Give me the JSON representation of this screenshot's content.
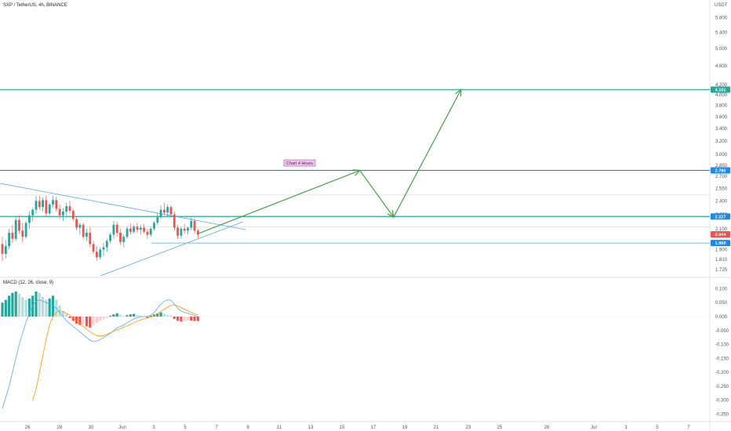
{
  "header": {
    "symbol_title": "SXP / TetherUS, 4h, BINANCE",
    "currency": "USDT"
  },
  "macd_label": "MACD (12, 26, close, 9)",
  "annotation": "Chart 4 Hours",
  "colors": {
    "up": "#26a69a",
    "down": "#ef5350",
    "horizontal_line": "#26a69a",
    "trend_line": "#5aa7e6",
    "arrow": "#43a047",
    "price_tag_current": "#ef5350",
    "price_tag_levels": "#1e88e5",
    "price_tag_target": "#26a69a",
    "macd_line": "#5aa7e6",
    "signal_line": "#ff9800"
  },
  "chart_data": [
    {
      "type": "candlestick",
      "price_axis": {
        "scale": "log",
        "ticks": [
          "5.800",
          "5.400",
          "5.000",
          "4.600",
          "4.200",
          "4.000",
          "3.800",
          "3.600",
          "3.400",
          "3.200",
          "3.000",
          "2.850",
          "2.700",
          "2.550",
          "2.400",
          "2.250",
          "2.100",
          "1.950",
          "1.900",
          "1.810",
          "1.725"
        ]
      },
      "time_axis": {
        "ticks": [
          "26",
          "28",
          "30",
          "Jun",
          "3",
          "5",
          "7",
          "9",
          "11",
          "13",
          "15",
          "17",
          "19",
          "21",
          "23",
          "25",
          "28",
          "Jul",
          "3",
          "5",
          "7"
        ]
      },
      "price_tags": [
        {
          "label": "4.101",
          "value": 4.101,
          "kind": "target"
        },
        {
          "label": "2.780",
          "value": 2.78,
          "kind": "level"
        },
        {
          "label": "2.227",
          "value": 2.227,
          "kind": "level"
        },
        {
          "label": "2.044",
          "value": 2.044,
          "kind": "current"
        },
        {
          "label": "1.960",
          "value": 1.96,
          "kind": "level"
        }
      ],
      "horizontal_levels": [
        4.101,
        2.78,
        2.227,
        1.96
      ],
      "thin_levels": [
        2.47,
        2.12
      ],
      "candles_ohlc": [
        [
          1.95,
          2.02,
          1.8,
          1.86
        ],
        [
          1.86,
          1.99,
          1.82,
          1.93
        ],
        [
          1.93,
          2.1,
          1.9,
          2.06
        ],
        [
          2.06,
          2.14,
          1.96,
          2.0
        ],
        [
          2.0,
          2.22,
          1.98,
          2.19
        ],
        [
          2.19,
          2.24,
          2.05,
          2.08
        ],
        [
          2.08,
          2.16,
          1.97,
          2.02
        ],
        [
          2.02,
          2.18,
          2.0,
          2.16
        ],
        [
          2.16,
          2.28,
          2.1,
          2.24
        ],
        [
          2.24,
          2.32,
          2.18,
          2.3
        ],
        [
          2.3,
          2.46,
          2.25,
          2.4
        ],
        [
          2.4,
          2.46,
          2.3,
          2.33
        ],
        [
          2.33,
          2.44,
          2.28,
          2.41
        ],
        [
          2.41,
          2.46,
          2.22,
          2.26
        ],
        [
          2.26,
          2.38,
          2.24,
          2.36
        ],
        [
          2.36,
          2.46,
          2.32,
          2.41
        ],
        [
          2.41,
          2.45,
          2.28,
          2.31
        ],
        [
          2.31,
          2.36,
          2.2,
          2.24
        ],
        [
          2.24,
          2.32,
          2.18,
          2.28
        ],
        [
          2.28,
          2.38,
          2.24,
          2.34
        ],
        [
          2.34,
          2.4,
          2.26,
          2.29
        ],
        [
          2.29,
          2.31,
          2.18,
          2.2
        ],
        [
          2.2,
          2.22,
          2.08,
          2.11
        ],
        [
          2.11,
          2.16,
          2.04,
          2.14
        ],
        [
          2.14,
          2.16,
          2.0,
          2.02
        ],
        [
          2.02,
          2.1,
          1.98,
          2.06
        ],
        [
          2.06,
          2.12,
          1.92,
          1.95
        ],
        [
          1.95,
          1.98,
          1.86,
          1.88
        ],
        [
          1.88,
          1.93,
          1.8,
          1.83
        ],
        [
          1.83,
          1.92,
          1.81,
          1.9
        ],
        [
          1.9,
          1.96,
          1.84,
          1.92
        ],
        [
          1.92,
          2.0,
          1.88,
          1.98
        ],
        [
          1.98,
          2.06,
          1.96,
          2.04
        ],
        [
          2.04,
          2.18,
          2.0,
          2.14
        ],
        [
          2.14,
          2.17,
          2.02,
          2.06
        ],
        [
          2.06,
          2.1,
          1.94,
          1.97
        ],
        [
          1.97,
          2.04,
          1.92,
          2.02
        ],
        [
          2.02,
          2.12,
          2.0,
          2.1
        ],
        [
          2.1,
          2.15,
          2.04,
          2.07
        ],
        [
          2.07,
          2.14,
          2.05,
          2.12
        ],
        [
          2.12,
          2.16,
          2.06,
          2.09
        ],
        [
          2.09,
          2.14,
          2.04,
          2.11
        ],
        [
          2.11,
          2.15,
          2.05,
          2.07
        ],
        [
          2.07,
          2.1,
          2.0,
          2.04
        ],
        [
          2.04,
          2.12,
          2.02,
          2.1
        ],
        [
          2.1,
          2.18,
          2.08,
          2.16
        ],
        [
          2.16,
          2.26,
          2.14,
          2.22
        ],
        [
          2.22,
          2.35,
          2.2,
          2.3
        ],
        [
          2.3,
          2.38,
          2.24,
          2.27
        ],
        [
          2.27,
          2.36,
          2.22,
          2.33
        ],
        [
          2.33,
          2.35,
          2.22,
          2.25
        ],
        [
          2.25,
          2.28,
          2.08,
          2.11
        ],
        [
          2.11,
          2.14,
          2.0,
          2.03
        ],
        [
          2.03,
          2.12,
          2.0,
          2.1
        ],
        [
          2.1,
          2.15,
          2.05,
          2.08
        ],
        [
          2.08,
          2.12,
          2.04,
          2.11
        ],
        [
          2.11,
          2.22,
          2.08,
          2.18
        ],
        [
          2.18,
          2.2,
          2.05,
          2.08
        ],
        [
          2.08,
          2.1,
          2.01,
          2.04
        ]
      ],
      "forecast_path": [
        {
          "time_index": 58,
          "price": 2.05
        },
        {
          "time_index": 106,
          "price": 2.78
        },
        {
          "time_index": 116,
          "price": 2.22
        },
        {
          "time_index": 136,
          "price": 4.101
        }
      ]
    },
    {
      "type": "macd",
      "axis_ticks": [
        "0.100",
        "0.050",
        "0.000",
        "-0.050",
        "-0.100",
        "-0.150",
        "-0.200",
        "-0.250",
        "-0.300",
        "-0.350"
      ],
      "histogram": [
        0.05,
        0.06,
        0.075,
        0.085,
        0.09,
        0.082,
        0.07,
        0.06,
        0.065,
        0.075,
        0.09,
        0.085,
        0.07,
        0.06,
        0.065,
        0.075,
        0.06,
        0.04,
        0.02,
        0.01,
        -0.005,
        -0.015,
        -0.025,
        -0.03,
        -0.028,
        -0.035,
        -0.04,
        -0.03,
        -0.022,
        -0.015,
        -0.01,
        -0.005,
        0.003,
        0.008,
        0.012,
        0.006,
        0.002,
        0.005,
        0.008,
        0.01,
        0.006,
        0.003,
        0.0,
        -0.004,
        0.003,
        0.008,
        0.012,
        0.015,
        0.01,
        0.005,
        0.003,
        -0.008,
        -0.015,
        -0.018,
        -0.015,
        -0.012,
        -0.014,
        -0.016,
        -0.016
      ],
      "macd_line": [
        -0.33,
        -0.29,
        -0.25,
        -0.2,
        -0.15,
        -0.1,
        -0.06,
        -0.02,
        0.01,
        0.04,
        0.055,
        0.06,
        0.055,
        0.05,
        0.045,
        0.04,
        0.03,
        0.015,
        0.0,
        -0.015,
        -0.025,
        -0.035,
        -0.045,
        -0.055,
        -0.065,
        -0.075,
        -0.085,
        -0.09,
        -0.088,
        -0.082,
        -0.075,
        -0.068,
        -0.06,
        -0.05,
        -0.04,
        -0.035,
        -0.03,
        -0.022,
        -0.015,
        -0.008,
        -0.004,
        0.0,
        0.0,
        0.0,
        0.005,
        0.015,
        0.03,
        0.045,
        0.055,
        0.06,
        0.058,
        0.045,
        0.03,
        0.02,
        0.015,
        0.012,
        0.008,
        0.004,
        0.0
      ],
      "signal_line": [
        null,
        null,
        null,
        null,
        null,
        null,
        null,
        null,
        null,
        -0.3,
        -0.26,
        -0.2,
        -0.14,
        -0.08,
        -0.03,
        0.0,
        0.015,
        0.02,
        0.018,
        0.012,
        0.005,
        -0.005,
        -0.015,
        -0.025,
        -0.035,
        -0.045,
        -0.055,
        -0.062,
        -0.068,
        -0.07,
        -0.068,
        -0.064,
        -0.058,
        -0.052,
        -0.047,
        -0.043,
        -0.038,
        -0.033,
        -0.028,
        -0.022,
        -0.016,
        -0.012,
        -0.008,
        -0.005,
        -0.002,
        0.003,
        0.01,
        0.018,
        0.026,
        0.034,
        0.04,
        0.042,
        0.038,
        0.032,
        0.026,
        0.02,
        0.015,
        0.01,
        0.006
      ]
    }
  ]
}
